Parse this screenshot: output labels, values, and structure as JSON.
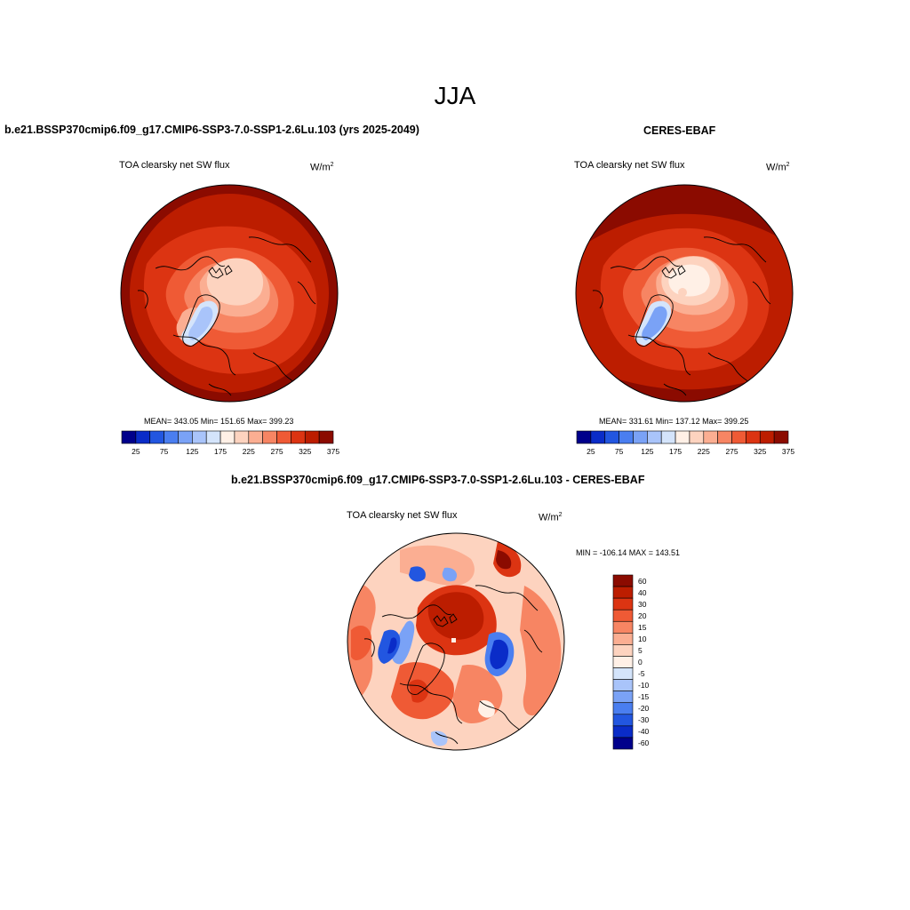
{
  "title": "JJA",
  "panels": [
    {
      "title": "b.e21.BSSP370cmip6.f09_g17.CMIP6-SSP3-7.0-SSP1-2.6Lu.103 (yrs 2025-2049)",
      "variable": "TOA clearsky net SW flux",
      "units": "W/m",
      "units_sup": "2",
      "stats": "MEAN= 343.05  Min= 151.65  Max= 399.23"
    },
    {
      "title": "CERES-EBAF",
      "variable": "TOA clearsky net SW flux",
      "units": "W/m",
      "units_sup": "2",
      "stats": "MEAN= 331.61  Min= 137.12  Max= 399.25"
    },
    {
      "title": "b.e21.BSSP370cmip6.f09_g17.CMIP6-SSP3-7.0-SSP1-2.6Lu.103 - CERES-EBAF",
      "variable": "TOA clearsky net SW flux",
      "units": "W/m",
      "units_sup": "2",
      "stats": "MIN = -106.14 MAX = 143.51"
    }
  ],
  "field_colorbar": {
    "colors": [
      "#00008b",
      "#0a2cc8",
      "#2256e0",
      "#4a7ef0",
      "#7aa2f6",
      "#a9c4fa",
      "#d4e4fb",
      "#fff0e6",
      "#fdd3bf",
      "#fbae92",
      "#f78563",
      "#ef5a35",
      "#dc3412",
      "#bc1d00",
      "#8b0b00"
    ],
    "labels": [
      "25",
      "75",
      "125",
      "175",
      "225",
      "275",
      "325",
      "375"
    ]
  },
  "diff_colorbar": {
    "colors": [
      "#8b0b00",
      "#bc1d00",
      "#dc3412",
      "#ef5a35",
      "#f78563",
      "#fbae92",
      "#fdd3bf",
      "#fff0e6",
      "#d4e4fb",
      "#a9c4fa",
      "#7aa2f6",
      "#4a7ef0",
      "#2256e0",
      "#0a2cc8",
      "#00008b"
    ],
    "labels": [
      "60",
      "40",
      "30",
      "20",
      "15",
      "10",
      "5",
      "0",
      "-5",
      "-10",
      "-15",
      "-20",
      "-30",
      "-40",
      "-60"
    ]
  }
}
